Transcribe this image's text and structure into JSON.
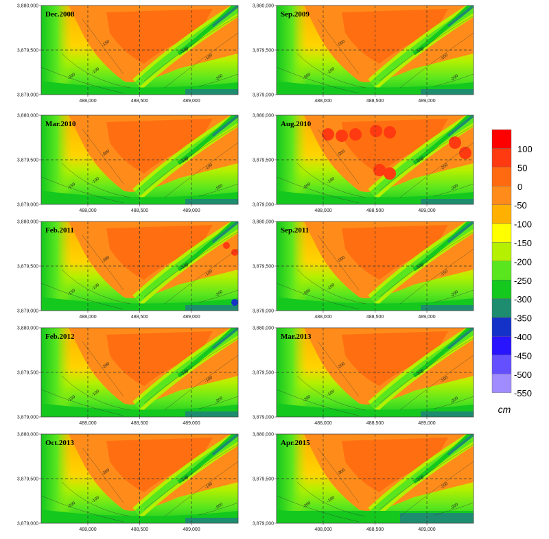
{
  "chart_data": {
    "type": "heatmap",
    "unit": "cm",
    "x_ticks": [
      "488,000",
      "488,500",
      "489,000"
    ],
    "y_ticks": [
      "3,880,000",
      "3,879,500",
      "3,879,000"
    ],
    "xlim": [
      487550,
      489450
    ],
    "ylim": [
      3879000,
      3880000
    ],
    "colorbar": {
      "levels": [
        100,
        50,
        0,
        -50,
        -100,
        -150,
        -200,
        -250,
        -300,
        -350,
        -400,
        -450,
        -500,
        -550
      ],
      "labels": [
        "100",
        "50",
        "0",
        "-50",
        "-100",
        "-150",
        "-200",
        "-250",
        "-300",
        "-350",
        "-400",
        "-450",
        "-500",
        "-550"
      ],
      "colors": [
        "#ff0000",
        "#ff3a10",
        "#ff6a10",
        "#ff8c1a",
        "#ffb000",
        "#ffff00",
        "#b4f000",
        "#5ae61e",
        "#14c81e",
        "#1e8c6e",
        "#1432c8",
        "#2814ff",
        "#6450ff",
        "#a08cff"
      ]
    },
    "panels": [
      {
        "title": "Dec.2008",
        "contours": [
          "-100",
          "-100",
          "-100",
          "-200",
          "-200",
          "-150"
        ]
      },
      {
        "title": "Sep.2009",
        "contours": [
          "-100",
          "-100",
          "-100",
          "-200",
          "-200",
          "-200"
        ]
      },
      {
        "title": "Mar.2010",
        "contours": [
          "-100",
          "-100",
          "-100",
          "-150",
          "-200",
          "-200"
        ]
      },
      {
        "title": "Aug.2010",
        "contours": [
          "-100",
          "-100",
          "-200",
          "-200",
          "-200",
          "-200"
        ]
      },
      {
        "title": "Feb.2011",
        "contours": [
          "-100",
          "-100",
          "-100",
          "-150",
          "-200",
          "-200"
        ]
      },
      {
        "title": "Sep.2011",
        "contours": [
          "-100",
          "-100",
          "-150",
          "-200",
          "-200",
          "-200"
        ]
      },
      {
        "title": "Feb.2012",
        "contours": [
          "-100",
          "-100",
          "-100",
          "-150",
          "-200",
          "-200"
        ]
      },
      {
        "title": "Mar.2013",
        "contours": [
          "-100",
          "-100",
          "-100",
          "-200",
          "-200",
          "-200"
        ]
      },
      {
        "title": "Oct.2013",
        "contours": [
          "-100",
          "-100",
          "-100",
          "-200",
          "-200",
          "-200"
        ]
      },
      {
        "title": "Apr.2015",
        "contours": [
          "-100",
          "-100",
          "-100",
          "-200",
          "-200",
          "-300"
        ]
      }
    ]
  }
}
